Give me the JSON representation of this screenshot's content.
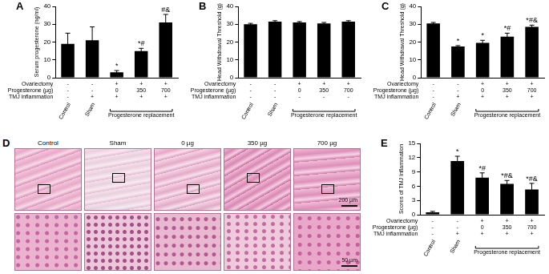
{
  "chart_data": [
    {
      "panel": "A",
      "type": "bar",
      "y_label": "Serum progesterone (ng/ml)",
      "categories": [
        "Control",
        "Sham",
        null,
        null,
        null
      ],
      "category_group": "Progesterone replacement",
      "values": [
        19,
        21,
        3,
        15,
        31
      ],
      "errors": [
        6,
        7.5,
        1,
        1.5,
        4.5
      ],
      "annotations": [
        null,
        null,
        "*",
        "*#",
        "#&"
      ],
      "conditions": [
        {
          "label": "Ovariectomy",
          "values": [
            "-",
            "-",
            "+",
            "+",
            "+"
          ]
        },
        {
          "label": "Progesterone (µg)",
          "values": [
            "-",
            "-",
            "0",
            "350",
            "700"
          ]
        },
        {
          "label": "TMJ inflammation",
          "values": [
            "-",
            "+",
            "+",
            "+",
            "+"
          ]
        }
      ],
      "color": "#000000",
      "ylim": [
        0,
        40
      ],
      "yticks": [
        0,
        10,
        20,
        30,
        40
      ],
      "grid": false
    },
    {
      "panel": "B",
      "type": "bar",
      "y_label": "Head Withdrawal Threshold (g)",
      "categories": [
        "Control",
        "Sham",
        null,
        null,
        null
      ],
      "category_group": "Progesterone replacement",
      "values": [
        30,
        31.5,
        31,
        30.5,
        31.5
      ],
      "errors": [
        0.5,
        0.5,
        0.5,
        0.5,
        0.5
      ],
      "annotations": [
        null,
        null,
        null,
        null,
        null
      ],
      "conditions": [
        {
          "label": "Ovariectomy",
          "values": [
            "-",
            "-",
            "+",
            "+",
            "+"
          ]
        },
        {
          "label": "Progesterone (µg)",
          "values": [
            "-",
            "-",
            "0",
            "350",
            "700"
          ]
        },
        {
          "label": "TMJ inflammation",
          "values": [
            "-",
            "-",
            "-",
            "-",
            "-"
          ]
        }
      ],
      "color": "#000000",
      "ylim": [
        0,
        40
      ],
      "yticks": [
        0,
        10,
        20,
        30,
        40
      ],
      "grid": false
    },
    {
      "panel": "C",
      "type": "bar",
      "y_label": "Head Withdrawal Threshold (g)",
      "categories": [
        "Control",
        "Sham",
        null,
        null,
        null
      ],
      "category_group": "Progesterone replacement",
      "values": [
        30.5,
        17.5,
        19.5,
        23,
        28.5
      ],
      "errors": [
        0.5,
        0.5,
        1.5,
        2,
        1
      ],
      "annotations": [
        null,
        "*",
        "*",
        "*#",
        "*#&"
      ],
      "conditions": [
        {
          "label": "Ovariectomy",
          "values": [
            "-",
            "-",
            "+",
            "+",
            "+"
          ]
        },
        {
          "label": "Progesterone (µg)",
          "values": [
            "-",
            "-",
            "0",
            "350",
            "700"
          ]
        },
        {
          "label": "TMJ inflammation",
          "values": [
            "-",
            "+",
            "+",
            "+",
            "+"
          ]
        }
      ],
      "color": "#000000",
      "ylim": [
        0,
        40
      ],
      "yticks": [
        0,
        10,
        20,
        30,
        40
      ],
      "grid": false
    },
    {
      "panel": "E",
      "type": "bar",
      "y_label": "Scores of TMJ Inflammation",
      "categories": [
        "Control",
        "Sham",
        null,
        null,
        null
      ],
      "category_group": "Progesterone replacement",
      "values": [
        0.5,
        11.3,
        7.8,
        6.5,
        5.3
      ],
      "errors": [
        0.2,
        1,
        1,
        0.7,
        1.3
      ],
      "annotations": [
        null,
        "*",
        "*#",
        "*#&",
        "*#&"
      ],
      "conditions": [
        {
          "label": "Ovariectomy",
          "values": [
            "-",
            "-",
            "+",
            "+",
            "+"
          ]
        },
        {
          "label": "Progesterone (µg)",
          "values": [
            "-",
            "-",
            "0",
            "350",
            "700"
          ]
        },
        {
          "label": "TMJ inflammation",
          "values": [
            "-",
            "+",
            "+",
            "+",
            "+"
          ]
        }
      ],
      "color": "#000000",
      "ylim": [
        0,
        15
      ],
      "yticks": [
        0,
        3,
        6,
        9,
        12,
        15
      ],
      "grid": false
    }
  ],
  "image_panel": {
    "panel": "D",
    "columns": [
      "Control",
      "Sham",
      "0 µg",
      "350 µg",
      "700 µg"
    ],
    "scale_bars": [
      "200 µm",
      "50 µm"
    ]
  }
}
